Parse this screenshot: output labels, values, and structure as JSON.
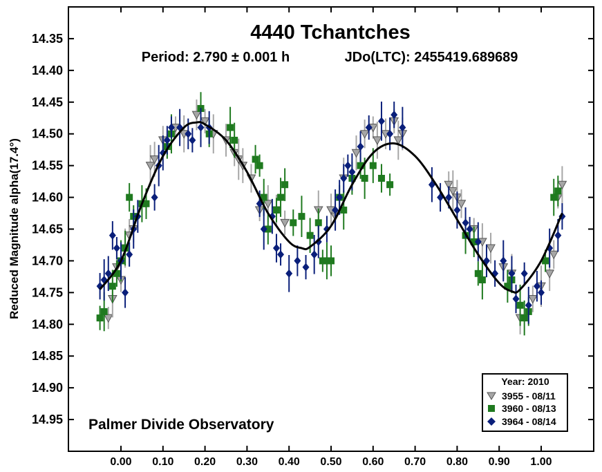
{
  "chart_data": {
    "type": "scatter",
    "title": "4440 Tchantches",
    "subtitle_period": "Period: 2.790 ± 0.001 h",
    "subtitle_jd": "JDo(LTC): 2455419.689689",
    "ylabel": "Reduced Magnitude alpha(17.4°)",
    "xlabel": "",
    "watermark": "Palmer Divide Observatory",
    "xlim": [
      -0.125,
      1.125
    ],
    "ylim": [
      14.3,
      15.0
    ],
    "y_inverted": true,
    "x_ticks": [
      0.0,
      0.1,
      0.2,
      0.3,
      0.4,
      0.5,
      0.6,
      0.7,
      0.8,
      0.9,
      1.0
    ],
    "x_tick_labels": [
      "0.00",
      "0.10",
      "0.20",
      "0.30",
      "0.40",
      "0.50",
      "0.60",
      "0.70",
      "0.80",
      "0.90",
      "1.00"
    ],
    "y_ticks": [
      14.35,
      14.4,
      14.45,
      14.5,
      14.55,
      14.6,
      14.65,
      14.7,
      14.75,
      14.8,
      14.85,
      14.9,
      14.95
    ],
    "y_tick_labels": [
      "14.35",
      "14.40",
      "14.45",
      "14.50",
      "14.55",
      "14.60",
      "14.65",
      "14.70",
      "14.75",
      "14.80",
      "14.85",
      "14.90",
      "14.95"
    ],
    "legend": {
      "title": "Year: 2010",
      "position": "bottom-right",
      "entries": [
        "3955 - 08/11",
        "3960 - 08/13",
        "3964 - 08/14"
      ]
    },
    "fit_curve": {
      "x": [
        -0.05,
        0.0,
        0.05,
        0.1,
        0.15,
        0.18,
        0.2,
        0.25,
        0.3,
        0.35,
        0.4,
        0.43,
        0.45,
        0.5,
        0.55,
        0.6,
        0.65,
        0.7,
        0.75,
        0.8,
        0.85,
        0.9,
        0.93,
        0.95,
        1.0,
        1.05
      ],
      "y": [
        14.745,
        14.7,
        14.61,
        14.535,
        14.49,
        14.482,
        14.485,
        14.51,
        14.56,
        14.625,
        14.67,
        14.68,
        14.678,
        14.645,
        14.58,
        14.53,
        14.515,
        14.535,
        14.58,
        14.635,
        14.69,
        14.735,
        14.748,
        14.745,
        14.7,
        14.625
      ]
    },
    "series": [
      {
        "name": "3955 - 08/11",
        "marker": "triangle-down",
        "color": "#a6a6a6",
        "x": [
          -0.03,
          -0.02,
          -0.01,
          0.0,
          0.01,
          0.02,
          0.03,
          0.07,
          0.08,
          0.1,
          0.13,
          0.15,
          0.18,
          0.2,
          0.22,
          0.25,
          0.27,
          0.28,
          0.29,
          0.31,
          0.33,
          0.35,
          0.37,
          0.39,
          0.47,
          0.5,
          0.51,
          0.53,
          0.56,
          0.58,
          0.6,
          0.61,
          0.63,
          0.65,
          0.66,
          0.67,
          0.78,
          0.79,
          0.8,
          0.81,
          0.84,
          0.86,
          0.88,
          0.91,
          0.93,
          0.95,
          0.98,
          1.0,
          1.02,
          1.03,
          1.04,
          1.05
        ],
        "y": [
          14.79,
          14.76,
          14.71,
          14.73,
          14.68,
          14.66,
          14.65,
          14.55,
          14.54,
          14.51,
          14.49,
          14.5,
          14.47,
          14.48,
          14.5,
          14.51,
          14.53,
          14.54,
          14.55,
          14.57,
          14.62,
          14.61,
          14.62,
          14.64,
          14.62,
          14.62,
          14.63,
          14.57,
          14.53,
          14.5,
          14.49,
          14.51,
          14.5,
          14.48,
          14.51,
          14.5,
          14.58,
          14.59,
          14.6,
          14.61,
          14.65,
          14.67,
          14.68,
          14.71,
          14.72,
          14.79,
          14.76,
          14.74,
          14.72,
          14.69,
          14.6,
          14.58
        ]
      },
      {
        "name": "3960 - 08/13",
        "marker": "square",
        "color": "#1f7a1f",
        "x": [
          -0.05,
          -0.04,
          -0.02,
          -0.01,
          0.0,
          0.01,
          0.02,
          0.03,
          0.05,
          0.06,
          0.11,
          0.12,
          0.19,
          0.21,
          0.26,
          0.27,
          0.32,
          0.33,
          0.34,
          0.35,
          0.37,
          0.38,
          0.39,
          0.41,
          0.43,
          0.45,
          0.47,
          0.48,
          0.49,
          0.5,
          0.52,
          0.53,
          0.55,
          0.57,
          0.58,
          0.6,
          0.62,
          0.64,
          0.82,
          0.84,
          0.85,
          0.86,
          0.92,
          0.93,
          0.95,
          0.96,
          0.97,
          1.01,
          1.03,
          1.04
        ],
        "y": [
          14.79,
          14.78,
          14.74,
          14.72,
          14.7,
          14.68,
          14.6,
          14.63,
          14.61,
          14.61,
          14.52,
          14.5,
          14.46,
          14.5,
          14.49,
          14.51,
          14.54,
          14.55,
          14.6,
          14.65,
          14.62,
          14.6,
          14.58,
          14.64,
          14.63,
          14.66,
          14.64,
          14.7,
          14.7,
          14.7,
          14.6,
          14.62,
          14.57,
          14.55,
          14.57,
          14.55,
          14.57,
          14.58,
          14.66,
          14.67,
          14.72,
          14.73,
          14.74,
          14.73,
          14.77,
          14.79,
          14.78,
          14.7,
          14.6,
          14.59
        ]
      },
      {
        "name": "3964 - 08/14",
        "marker": "diamond",
        "color": "#0a1f7a",
        "x": [
          -0.05,
          -0.04,
          -0.03,
          -0.02,
          -0.01,
          0.0,
          0.01,
          0.02,
          0.03,
          0.04,
          0.08,
          0.09,
          0.1,
          0.11,
          0.12,
          0.14,
          0.16,
          0.17,
          0.19,
          0.21,
          0.33,
          0.34,
          0.36,
          0.37,
          0.38,
          0.4,
          0.42,
          0.44,
          0.46,
          0.47,
          0.49,
          0.51,
          0.52,
          0.53,
          0.54,
          0.55,
          0.57,
          0.59,
          0.62,
          0.64,
          0.65,
          0.67,
          0.74,
          0.76,
          0.78,
          0.8,
          0.82,
          0.83,
          0.85,
          0.87,
          0.89,
          0.91,
          0.93,
          0.94,
          0.96,
          0.97,
          0.99,
          1.0,
          1.02,
          1.04,
          1.05
        ],
        "y": [
          14.74,
          14.73,
          14.72,
          14.66,
          14.68,
          14.7,
          14.75,
          14.69,
          14.65,
          14.63,
          14.6,
          14.55,
          14.53,
          14.51,
          14.49,
          14.49,
          14.5,
          14.51,
          14.49,
          14.49,
          14.61,
          14.65,
          14.63,
          14.68,
          14.69,
          14.72,
          14.7,
          14.71,
          14.69,
          14.67,
          14.65,
          14.62,
          14.6,
          14.57,
          14.55,
          14.56,
          14.52,
          14.49,
          14.48,
          14.5,
          14.47,
          14.49,
          14.58,
          14.6,
          14.6,
          14.62,
          14.64,
          14.65,
          14.67,
          14.7,
          14.72,
          14.7,
          14.72,
          14.76,
          14.72,
          14.77,
          14.74,
          14.75,
          14.68,
          14.66,
          14.63
        ]
      }
    ]
  }
}
